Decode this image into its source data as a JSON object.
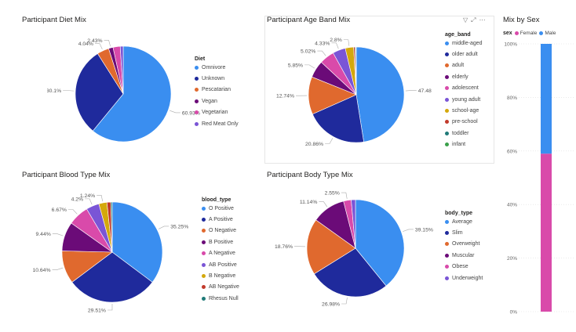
{
  "colors": {
    "blue": "#3a8ef0",
    "navy": "#1f2a9c",
    "orange": "#e0692e",
    "purple": "#6b0b78",
    "pink": "#d94aaa",
    "violet": "#7a55d6",
    "gold": "#d4a80c",
    "red": "#c23a2b",
    "teal": "#1f7a78",
    "green": "#3aa04a"
  },
  "header_icons": [
    "filter-icon",
    "focus-mode-icon",
    "more-options-icon"
  ],
  "charts": {
    "diet": {
      "title": "Participant Diet Mix",
      "legend_title": "Diet",
      "labels": [
        "60.93%",
        "30.1%",
        "4.04%",
        "2.43%"
      ]
    },
    "age": {
      "title": "Participant Age Band Mix",
      "legend_title": "age_band",
      "labels": [
        "47.48%",
        "20.86%",
        "12.74%",
        "5.85%",
        "5.02%",
        "4.33%",
        "2.8%"
      ]
    },
    "blood": {
      "title": "Participant Blood Type Mix",
      "legend_title": "blood_type",
      "labels": [
        "35.25%",
        "29.51%",
        "10.64%",
        "9.44%",
        "6.67%",
        "4.2%",
        "1.24%"
      ]
    },
    "body": {
      "title": "Participant Body Type Mix",
      "legend_title": "body_type",
      "labels": [
        "39.15%",
        "26.98%",
        "18.76%",
        "11.14%",
        "2.55%"
      ]
    },
    "sex": {
      "title": "Mix by Sex",
      "legend_title": "sex",
      "y_ticks": [
        "100%",
        "80%",
        "60%",
        "40%",
        "20%",
        "0%"
      ]
    }
  },
  "chart_data": [
    {
      "type": "pie",
      "title": "Participant Diet Mix",
      "legend_title": "Diet",
      "categories": [
        "Omnivore",
        "Unknown",
        "Pescatarian",
        "Vegan",
        "Vegetarian",
        "Red Meat Only"
      ],
      "values": [
        60.93,
        30.1,
        4.04,
        1.5,
        2.43,
        1.0
      ],
      "colors": [
        "#3a8ef0",
        "#1f2a9c",
        "#e0692e",
        "#6b0b78",
        "#d94aaa",
        "#7a55d6"
      ]
    },
    {
      "type": "pie",
      "title": "Participant Age Band Mix",
      "legend_title": "age_band",
      "categories": [
        "middle-aged",
        "older adult",
        "adult",
        "elderly",
        "adolescent",
        "young adult",
        "school-age",
        "pre-school",
        "toddler",
        "infant"
      ],
      "values": [
        47.48,
        20.86,
        12.74,
        5.85,
        5.02,
        4.33,
        2.8,
        0.5,
        0.3,
        0.1
      ],
      "colors": [
        "#3a8ef0",
        "#1f2a9c",
        "#e0692e",
        "#6b0b78",
        "#d94aaa",
        "#7a55d6",
        "#d4a80c",
        "#c23a2b",
        "#1f7a78",
        "#3aa04a"
      ]
    },
    {
      "type": "pie",
      "title": "Participant Blood Type Mix",
      "legend_title": "blood_type",
      "categories": [
        "O Positive",
        "A Positive",
        "O Negative",
        "B Positive",
        "A Negative",
        "AB Positive",
        "B Negative",
        "AB Negative",
        "Rhesus Null"
      ],
      "values": [
        35.25,
        29.51,
        10.64,
        9.44,
        6.67,
        4.2,
        2.6,
        1.24,
        0.45
      ],
      "colors": [
        "#3a8ef0",
        "#1f2a9c",
        "#e0692e",
        "#6b0b78",
        "#d94aaa",
        "#7a55d6",
        "#d4a80c",
        "#c23a2b",
        "#1f7a78"
      ]
    },
    {
      "type": "pie",
      "title": "Participant Body Type Mix",
      "legend_title": "body_type",
      "categories": [
        "Average",
        "Slim",
        "Overweight",
        "Muscular",
        "Obese",
        "Underweight"
      ],
      "values": [
        39.15,
        26.98,
        18.76,
        11.14,
        2.55,
        1.42
      ],
      "colors": [
        "#3a8ef0",
        "#1f2a9c",
        "#e0692e",
        "#6b0b78",
        "#d94aaa",
        "#7a55d6"
      ]
    },
    {
      "type": "bar",
      "stacked": true,
      "percent": true,
      "title": "Mix by Sex",
      "legend_title": "sex",
      "series": [
        {
          "name": "Female",
          "values": [
            59
          ],
          "color": "#d94aaa"
        },
        {
          "name": "Male",
          "values": [
            41
          ],
          "color": "#3a8ef0"
        }
      ],
      "ylim": [
        0,
        100
      ]
    }
  ]
}
